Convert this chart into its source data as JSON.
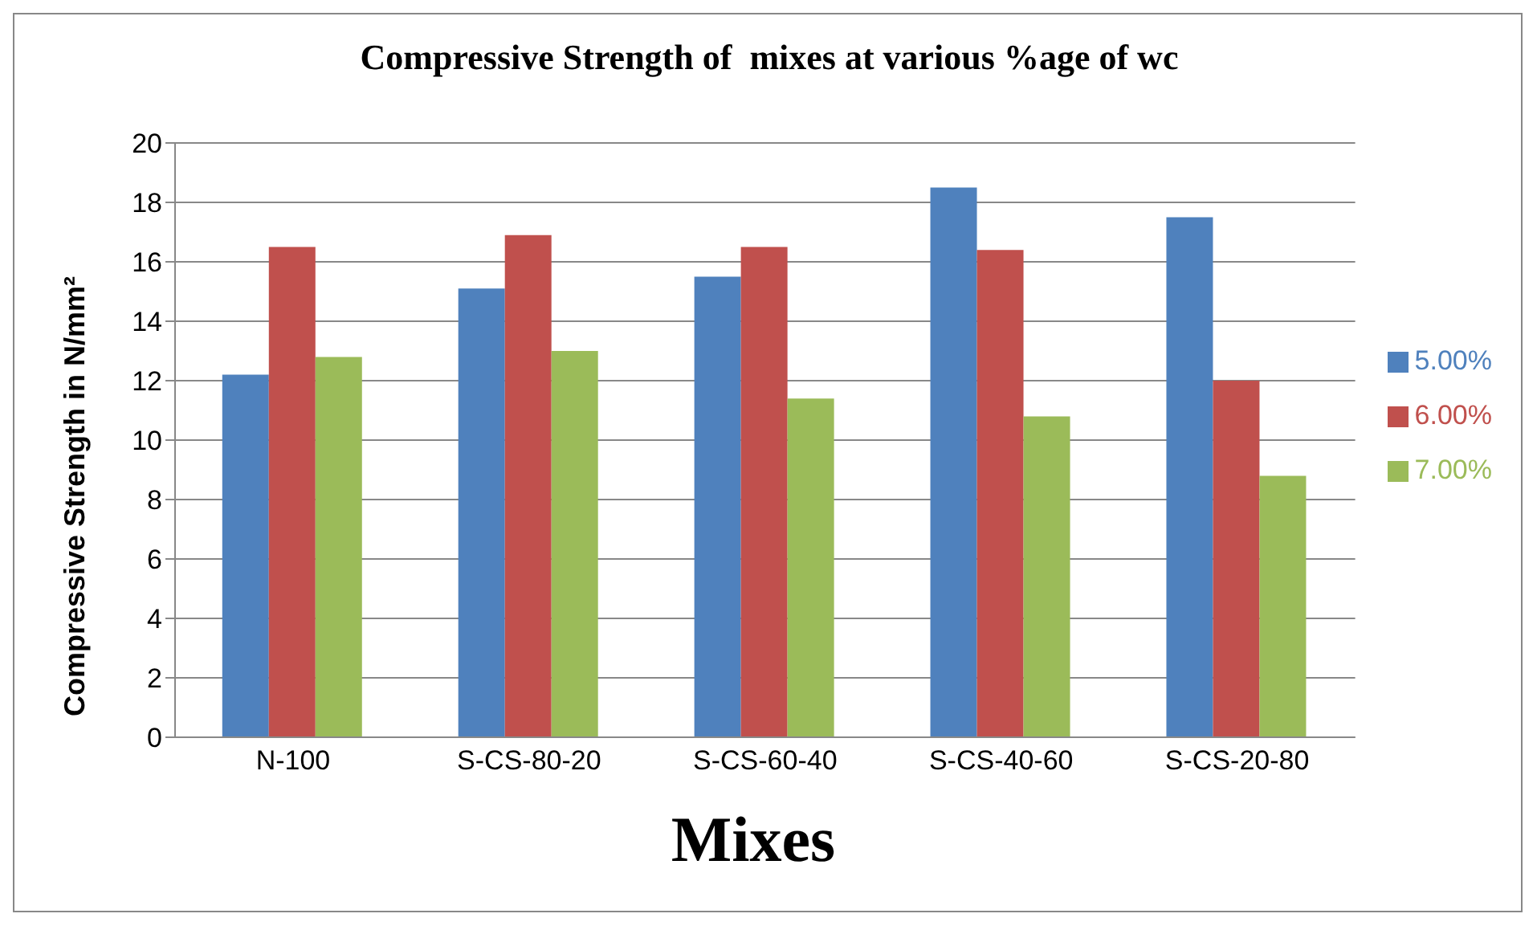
{
  "chart_data": {
    "type": "bar",
    "title": "Compressive Strength of  mixes at various %age of wc",
    "xlabel": "Mixes",
    "ylabel": "Compressive Strength in N/mm²",
    "categories": [
      "N-100",
      "S-CS-80-20",
      "S-CS-60-40",
      "S-CS-40-60",
      "S-CS-20-80"
    ],
    "series": [
      {
        "name": "5.00%",
        "color": "#4f81bd",
        "values": [
          12.2,
          15.1,
          15.5,
          18.5,
          17.5
        ]
      },
      {
        "name": "6.00%",
        "color": "#c0504d",
        "values": [
          16.5,
          16.9,
          16.5,
          16.4,
          12.0
        ]
      },
      {
        "name": "7.00%",
        "color": "#9bbb59",
        "values": [
          12.8,
          13.0,
          11.4,
          10.8,
          8.8
        ]
      }
    ],
    "ylim": [
      0,
      20
    ],
    "yticks": [
      0,
      2,
      4,
      6,
      8,
      10,
      12,
      14,
      16,
      18,
      20
    ],
    "grid": "y",
    "legend": "right"
  }
}
